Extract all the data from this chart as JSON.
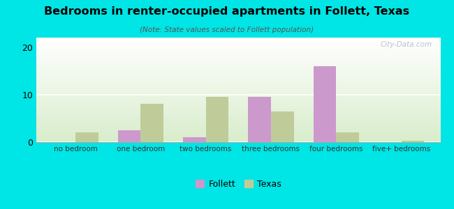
{
  "title": "Bedrooms in renter-occupied apartments in Follett, Texas",
  "subtitle": "(Note: State values scaled to Follett population)",
  "categories": [
    "no bedroom",
    "one bedroom",
    "two bedrooms",
    "three bedrooms",
    "four bedrooms",
    "five+ bedrooms"
  ],
  "follett_values": [
    0,
    2.5,
    1.0,
    9.5,
    16.0,
    0
  ],
  "texas_values": [
    2.0,
    8.0,
    9.5,
    6.5,
    2.0,
    0.3
  ],
  "follett_color": "#cc99cc",
  "texas_color": "#bfcc99",
  "background_color": "#00e5e5",
  "ylim": [
    0,
    22
  ],
  "yticks": [
    0,
    10,
    20
  ],
  "bar_width": 0.35,
  "legend_labels": [
    "Follett",
    "Texas"
  ],
  "watermark": "City-Data.com"
}
